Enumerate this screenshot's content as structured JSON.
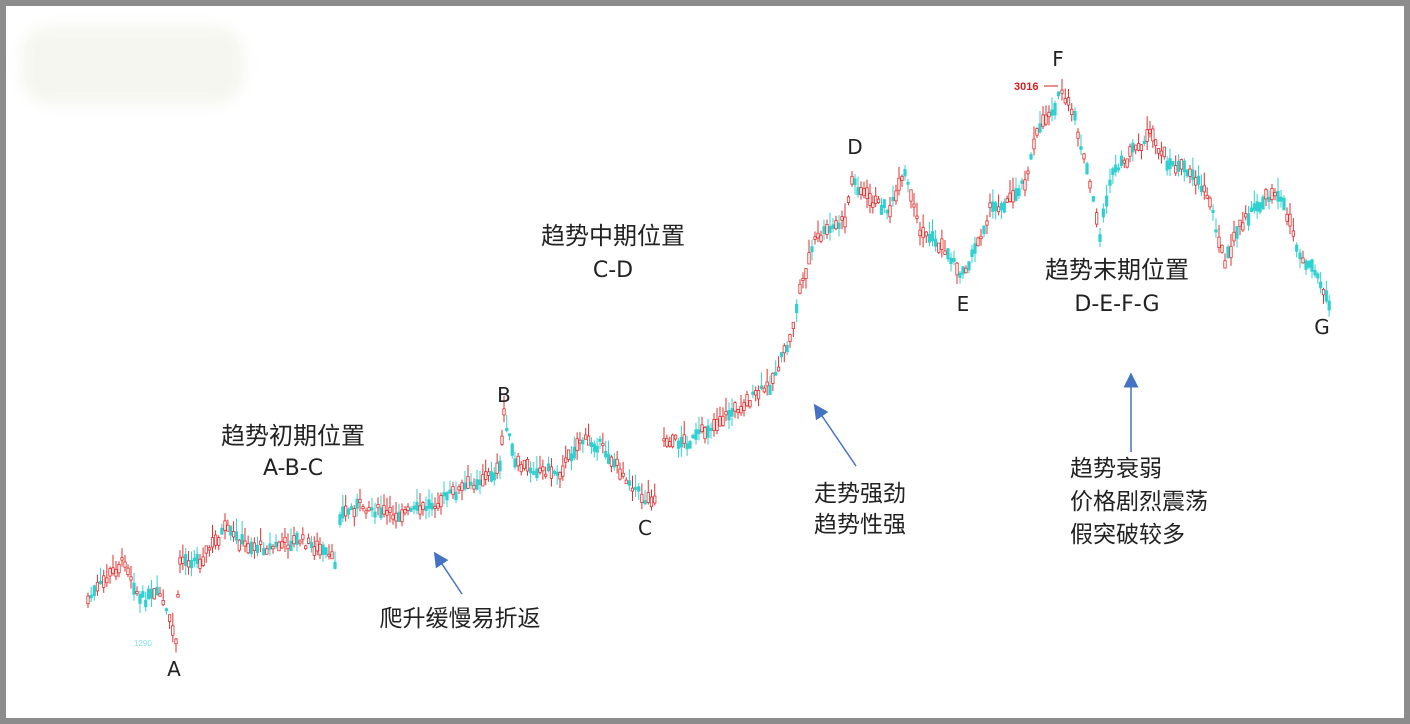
{
  "chart_data": {
    "type": "candlestick",
    "colors": {
      "up": "#e03030",
      "down": "#30d0d0",
      "text": "#222222",
      "arrow": "#4472c4"
    },
    "swing_points": [
      {
        "label": "A",
        "value": 1290
      },
      {
        "label": "B",
        "value": 2060
      },
      {
        "label": "C",
        "value": 1890
      },
      {
        "label": "D",
        "value": 2770
      },
      {
        "label": "E",
        "value": 2480
      },
      {
        "label": "F",
        "value": 3016
      },
      {
        "label": "G",
        "value": 2400
      }
    ],
    "price_markers": {
      "high": "3016",
      "low": "1290"
    },
    "phases": [
      {
        "title": "趋势初期位置",
        "range": "A-B-C",
        "note": [
          "爬升缓慢易折返"
        ]
      },
      {
        "title": "趋势中期位置",
        "range": "C-D",
        "note": [
          "走势强劲",
          "趋势性强"
        ]
      },
      {
        "title": "趋势末期位置",
        "range": "D-E-F-G",
        "note": [
          "趋势衰弱",
          "价格剧烈震荡",
          "假突破较多"
        ]
      }
    ]
  }
}
